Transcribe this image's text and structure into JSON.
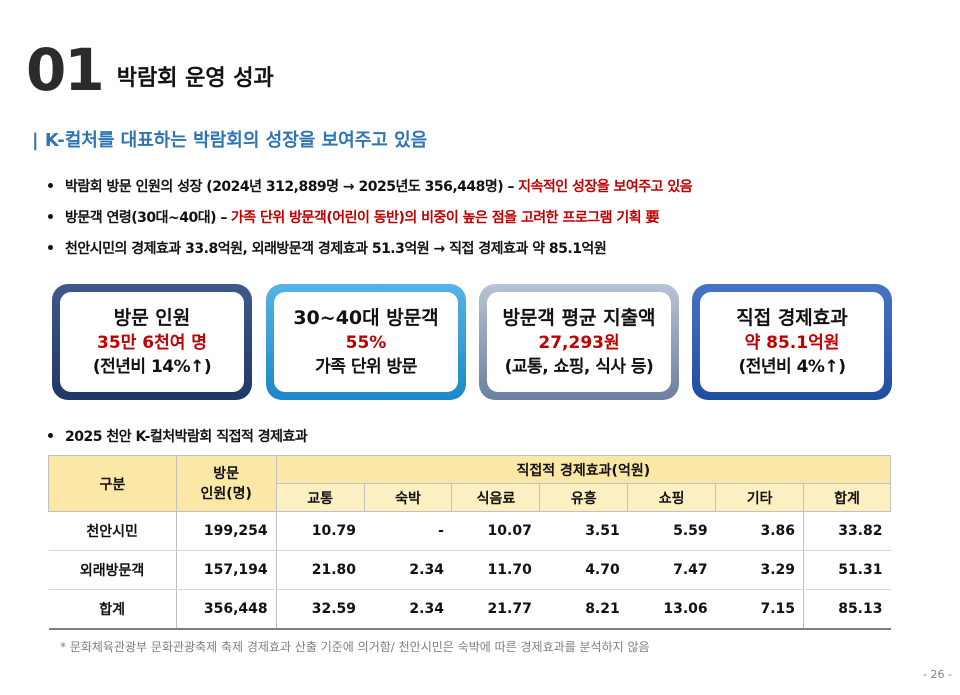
{
  "header": {
    "number": "01",
    "title": "박람회 운영 성과"
  },
  "subtitle": "| K-컬처를 대표하는 박람회의 성장을 보여주고 있음",
  "bullets": [
    {
      "text": "박람회 방문 인원의 성장 (2024년 312,889명 → 2025년도 356,448명) –",
      "highlight": "지속적인 성장을 보여주고 있음"
    },
    {
      "text": "방문객 연령(30대~40대) –",
      "highlight": "가족 단위 방문객(어린이 동반)의 비중이 높은 점을 고려한 프로그램 기획 要"
    },
    {
      "text": "천안시민의 경제효과 33.8억원, 외래방문객 경제효과 51.3억원 → 직접 경제효과 약 85.1억원",
      "highlight": ""
    }
  ],
  "cards": [
    {
      "title": "방문 인원",
      "value": "35만 6천여 명",
      "note": "(전년비 14%↑)"
    },
    {
      "title": "30~40대 방문객",
      "value": "55%",
      "note": "가족 단위 방문"
    },
    {
      "title": "방문객 평균 지출액",
      "value": "27,293원",
      "note": "(교통, 쇼핑, 식사 등)"
    },
    {
      "title": "직접 경제효과",
      "value": "약 85.1억원",
      "note": "(전년비 4%↑)"
    }
  ],
  "table_section": {
    "label": "2025 천안 K-컬처박람회 직접적 경제효과"
  },
  "table": {
    "col_group": "구분",
    "col_visitors": "방문\n인원(명)",
    "col_effect": "직접적 경제효과(억원)",
    "sub_cols": [
      "교통",
      "숙박",
      "식음료",
      "유흥",
      "쇼핑",
      "기타",
      "합계"
    ],
    "rows": [
      {
        "name": "천안시민",
        "visitors": "199,254",
        "values": [
          "10.79",
          "-",
          "10.07",
          "3.51",
          "5.59",
          "3.86",
          "33.82"
        ]
      },
      {
        "name": "외래방문객",
        "visitors": "157,194",
        "values": [
          "21.80",
          "2.34",
          "11.70",
          "4.70",
          "7.47",
          "3.29",
          "51.31"
        ]
      },
      {
        "name": "합계",
        "visitors": "356,448",
        "values": [
          "32.59",
          "2.34",
          "21.77",
          "8.21",
          "13.06",
          "7.15",
          "85.13"
        ]
      }
    ]
  },
  "footnote": "* 문화체육관광부 문화관광축제 축제 경제효과 산출 기준에 의거함/ 천안시민은 숙박에 따른 경제효과를 분석하지 않음",
  "page_number": "- 26 -"
}
